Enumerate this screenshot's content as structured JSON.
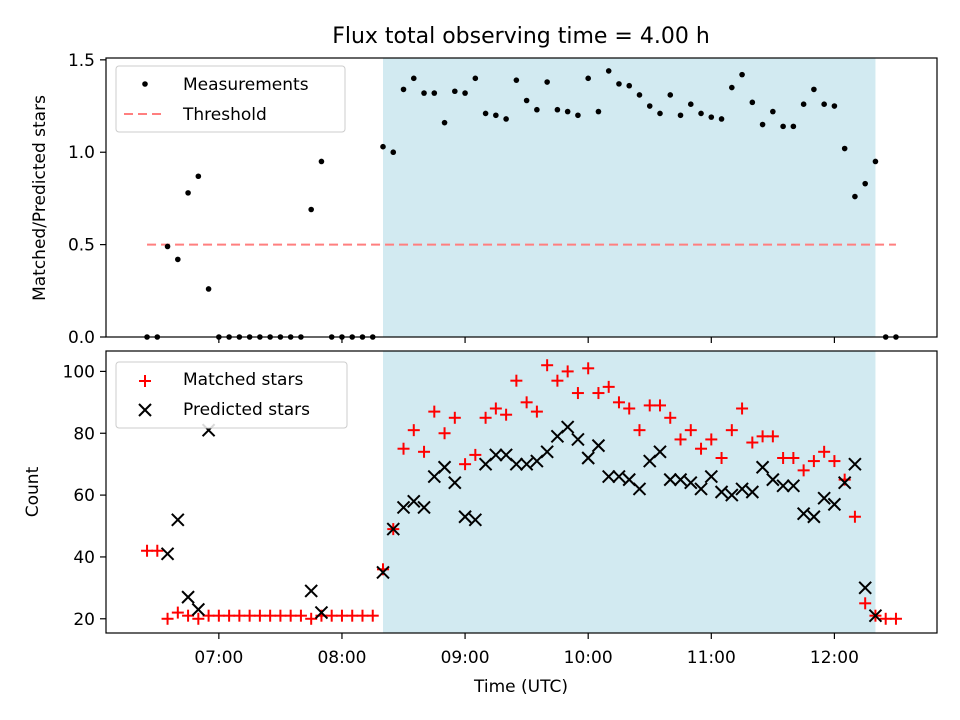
{
  "title": "Flux total observing time = 4.00 h",
  "colors": {
    "measurement": "#000000",
    "threshold": "#ff7f7f",
    "matched": "#ff0000",
    "predicted": "#000000",
    "shade": "#add8e6"
  },
  "chart_data": [
    {
      "type": "scatter",
      "ylabel": "Matched/Predicted stars",
      "xlim": [
        "06:05",
        "12:50"
      ],
      "ylim": [
        0,
        1.51
      ],
      "yticks": [
        "0.0",
        "0.5",
        "1.0",
        "1.5"
      ],
      "shaded_interval": [
        "08:20",
        "12:20"
      ],
      "legend": {
        "placement": "upper-left",
        "entries": [
          "Measurements",
          "Threshold"
        ]
      },
      "threshold": {
        "name": "Threshold",
        "value": 0.5,
        "x_range": [
          "06:25",
          "12:30"
        ]
      },
      "series": [
        {
          "name": "Measurements",
          "points": [
            [
              "06:25",
              0
            ],
            [
              "06:30",
              0
            ],
            [
              "06:35",
              0.49
            ],
            [
              "06:40",
              0.42
            ],
            [
              "06:45",
              0.78
            ],
            [
              "06:50",
              0.87
            ],
            [
              "06:55",
              0.26
            ],
            [
              "07:00",
              0
            ],
            [
              "07:05",
              0
            ],
            [
              "07:10",
              0
            ],
            [
              "07:15",
              0
            ],
            [
              "07:20",
              0
            ],
            [
              "07:25",
              0
            ],
            [
              "07:30",
              0
            ],
            [
              "07:35",
              0
            ],
            [
              "07:40",
              0
            ],
            [
              "07:45",
              0.69
            ],
            [
              "07:50",
              0.95
            ],
            [
              "07:55",
              0
            ],
            [
              "08:00",
              0
            ],
            [
              "08:05",
              0
            ],
            [
              "08:10",
              0
            ],
            [
              "08:15",
              0
            ],
            [
              "08:20",
              1.03
            ],
            [
              "08:25",
              1.0
            ],
            [
              "08:30",
              1.34
            ],
            [
              "08:35",
              1.4
            ],
            [
              "08:40",
              1.32
            ],
            [
              "08:45",
              1.32
            ],
            [
              "08:50",
              1.16
            ],
            [
              "08:55",
              1.33
            ],
            [
              "09:00",
              1.32
            ],
            [
              "09:05",
              1.4
            ],
            [
              "09:10",
              1.21
            ],
            [
              "09:15",
              1.2
            ],
            [
              "09:20",
              1.18
            ],
            [
              "09:25",
              1.39
            ],
            [
              "09:30",
              1.28
            ],
            [
              "09:35",
              1.23
            ],
            [
              "09:40",
              1.38
            ],
            [
              "09:45",
              1.23
            ],
            [
              "09:50",
              1.22
            ],
            [
              "09:55",
              1.2
            ],
            [
              "10:00",
              1.4
            ],
            [
              "10:05",
              1.22
            ],
            [
              "10:10",
              1.44
            ],
            [
              "10:15",
              1.37
            ],
            [
              "10:20",
              1.36
            ],
            [
              "10:25",
              1.31
            ],
            [
              "10:30",
              1.25
            ],
            [
              "10:35",
              1.21
            ],
            [
              "10:40",
              1.31
            ],
            [
              "10:45",
              1.2
            ],
            [
              "10:50",
              1.26
            ],
            [
              "10:55",
              1.21
            ],
            [
              "11:00",
              1.19
            ],
            [
              "11:05",
              1.18
            ],
            [
              "11:10",
              1.35
            ],
            [
              "11:15",
              1.42
            ],
            [
              "11:20",
              1.27
            ],
            [
              "11:25",
              1.15
            ],
            [
              "11:30",
              1.22
            ],
            [
              "11:35",
              1.14
            ],
            [
              "11:40",
              1.14
            ],
            [
              "11:45",
              1.26
            ],
            [
              "11:50",
              1.34
            ],
            [
              "11:55",
              1.26
            ],
            [
              "12:00",
              1.25
            ],
            [
              "12:05",
              1.02
            ],
            [
              "12:10",
              0.76
            ],
            [
              "12:15",
              0.83
            ],
            [
              "12:20",
              0.95
            ],
            [
              "12:25",
              0
            ],
            [
              "12:30",
              0
            ]
          ]
        }
      ]
    },
    {
      "type": "scatter",
      "ylabel": "Count",
      "xlabel": "Time (UTC)",
      "xlim": [
        "06:05",
        "12:50"
      ],
      "ylim": [
        15.4,
        106.6
      ],
      "yticks": [
        "20",
        "40",
        "60",
        "80",
        "100"
      ],
      "xticks": [
        "07:00",
        "08:00",
        "09:00",
        "10:00",
        "11:00",
        "12:00"
      ],
      "shaded_interval": [
        "08:20",
        "12:20"
      ],
      "legend": {
        "placement": "upper-left",
        "entries": [
          "Matched stars",
          "Predicted stars"
        ]
      },
      "series": [
        {
          "name": "Matched stars",
          "points": [
            [
              "06:25",
              42
            ],
            [
              "06:30",
              42
            ],
            [
              "06:35",
              20
            ],
            [
              "06:40",
              22
            ],
            [
              "06:45",
              21
            ],
            [
              "06:50",
              20
            ],
            [
              "06:55",
              21
            ],
            [
              "07:00",
              21
            ],
            [
              "07:05",
              21
            ],
            [
              "07:10",
              21
            ],
            [
              "07:15",
              21
            ],
            [
              "07:20",
              21
            ],
            [
              "07:25",
              21
            ],
            [
              "07:30",
              21
            ],
            [
              "07:35",
              21
            ],
            [
              "07:40",
              21
            ],
            [
              "07:45",
              20
            ],
            [
              "07:50",
              21
            ],
            [
              "07:55",
              21
            ],
            [
              "08:00",
              21
            ],
            [
              "08:05",
              21
            ],
            [
              "08:10",
              21
            ],
            [
              "08:15",
              21
            ],
            [
              "08:20",
              36
            ],
            [
              "08:25",
              49
            ],
            [
              "08:30",
              75
            ],
            [
              "08:35",
              81
            ],
            [
              "08:40",
              74
            ],
            [
              "08:45",
              87
            ],
            [
              "08:50",
              80
            ],
            [
              "08:55",
              85
            ],
            [
              "09:00",
              70
            ],
            [
              "09:05",
              73
            ],
            [
              "09:10",
              85
            ],
            [
              "09:15",
              88
            ],
            [
              "09:20",
              86
            ],
            [
              "09:25",
              97
            ],
            [
              "09:30",
              90
            ],
            [
              "09:35",
              87
            ],
            [
              "09:40",
              102
            ],
            [
              "09:45",
              97
            ],
            [
              "09:50",
              100
            ],
            [
              "09:55",
              93
            ],
            [
              "10:00",
              101
            ],
            [
              "10:05",
              93
            ],
            [
              "10:10",
              95
            ],
            [
              "10:15",
              90
            ],
            [
              "10:20",
              88
            ],
            [
              "10:25",
              81
            ],
            [
              "10:30",
              89
            ],
            [
              "10:35",
              89
            ],
            [
              "10:40",
              85
            ],
            [
              "10:45",
              78
            ],
            [
              "10:50",
              81
            ],
            [
              "10:55",
              75
            ],
            [
              "11:00",
              78
            ],
            [
              "11:05",
              72
            ],
            [
              "11:10",
              81
            ],
            [
              "11:15",
              88
            ],
            [
              "11:20",
              77
            ],
            [
              "11:25",
              79
            ],
            [
              "11:30",
              79
            ],
            [
              "11:35",
              72
            ],
            [
              "11:40",
              72
            ],
            [
              "11:45",
              68
            ],
            [
              "11:50",
              71
            ],
            [
              "11:55",
              74
            ],
            [
              "12:00",
              71
            ],
            [
              "12:05",
              65
            ],
            [
              "12:10",
              53
            ],
            [
              "12:15",
              25
            ],
            [
              "12:20",
              21
            ],
            [
              "12:25",
              20
            ],
            [
              "12:30",
              20
            ]
          ]
        },
        {
          "name": "Predicted stars",
          "points": [
            [
              "06:35",
              41
            ],
            [
              "06:40",
              52
            ],
            [
              "06:45",
              27
            ],
            [
              "06:50",
              23
            ],
            [
              "06:55",
              81
            ],
            [
              "07:45",
              29
            ],
            [
              "07:50",
              22
            ],
            [
              "08:20",
              35
            ],
            [
              "08:25",
              49
            ],
            [
              "08:30",
              56
            ],
            [
              "08:35",
              58
            ],
            [
              "08:40",
              56
            ],
            [
              "08:45",
              66
            ],
            [
              "08:50",
              69
            ],
            [
              "08:55",
              64
            ],
            [
              "09:00",
              53
            ],
            [
              "09:05",
              52
            ],
            [
              "09:10",
              70
            ],
            [
              "09:15",
              73
            ],
            [
              "09:20",
              73
            ],
            [
              "09:25",
              70
            ],
            [
              "09:30",
              70
            ],
            [
              "09:35",
              71
            ],
            [
              "09:40",
              74
            ],
            [
              "09:45",
              79
            ],
            [
              "09:50",
              82
            ],
            [
              "09:55",
              78
            ],
            [
              "10:00",
              72
            ],
            [
              "10:05",
              76
            ],
            [
              "10:10",
              66
            ],
            [
              "10:15",
              66
            ],
            [
              "10:20",
              65
            ],
            [
              "10:25",
              62
            ],
            [
              "10:30",
              71
            ],
            [
              "10:35",
              74
            ],
            [
              "10:40",
              65
            ],
            [
              "10:45",
              65
            ],
            [
              "10:50",
              64
            ],
            [
              "10:55",
              62
            ],
            [
              "11:00",
              66
            ],
            [
              "11:05",
              61
            ],
            [
              "11:10",
              60
            ],
            [
              "11:15",
              62
            ],
            [
              "11:20",
              61
            ],
            [
              "11:25",
              69
            ],
            [
              "11:30",
              65
            ],
            [
              "11:35",
              63
            ],
            [
              "11:40",
              63
            ],
            [
              "11:45",
              54
            ],
            [
              "11:50",
              53
            ],
            [
              "11:55",
              59
            ],
            [
              "12:00",
              57
            ],
            [
              "12:05",
              64
            ],
            [
              "12:10",
              70
            ],
            [
              "12:15",
              30
            ],
            [
              "12:20",
              21
            ]
          ]
        }
      ]
    }
  ]
}
